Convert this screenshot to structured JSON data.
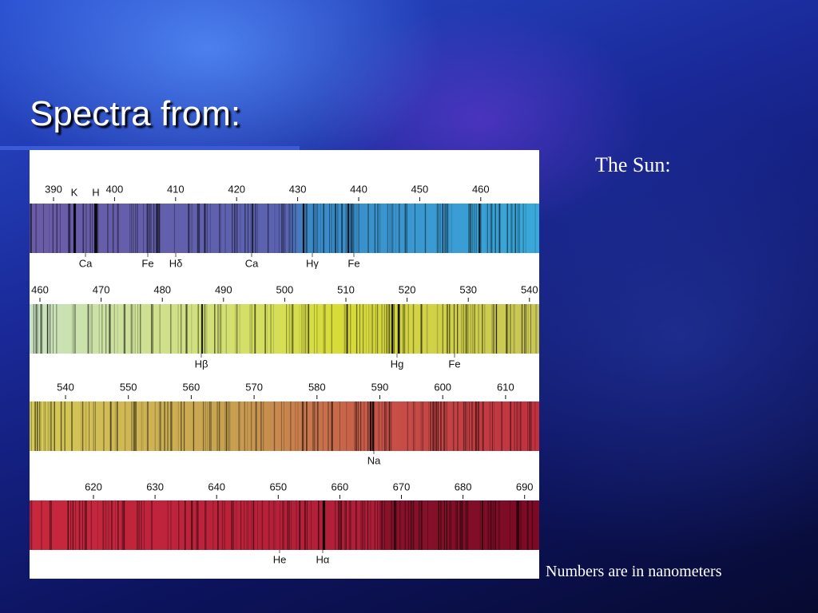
{
  "slide": {
    "title": "Spectra from:",
    "subtitle": "The Sun:",
    "note": "Numbers are in nanometers"
  },
  "spectrum": {
    "strips": [
      {
        "ticks": [
          390,
          400,
          410,
          420,
          430,
          440,
          450,
          460
        ],
        "top_labels": [
          "K",
          "H"
        ],
        "lines": [
          "Ca",
          "Fe",
          "Hδ",
          "Ca",
          "Hγ",
          "Fe"
        ]
      },
      {
        "ticks": [
          460,
          470,
          480,
          490,
          500,
          510,
          520,
          530,
          540
        ],
        "lines": [
          "Hβ",
          "Hg",
          "Fe"
        ]
      },
      {
        "ticks": [
          540,
          550,
          560,
          570,
          580,
          590,
          600,
          610
        ],
        "lines": [
          "Na"
        ]
      },
      {
        "ticks": [
          620,
          630,
          640,
          650,
          660,
          670,
          680,
          690
        ],
        "lines": [
          "He",
          "Hα"
        ]
      }
    ]
  }
}
